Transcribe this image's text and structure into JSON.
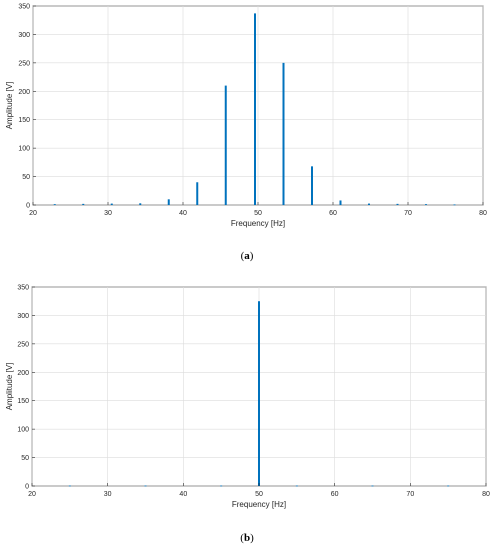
{
  "chart_data": [
    {
      "type": "bar",
      "panel_label": "a",
      "xlabel": "Frequency [Hz]",
      "ylabel": "Amplitude [V]",
      "xlim": [
        20,
        80
      ],
      "ylim": [
        0,
        350
      ],
      "xticks": [
        20,
        30,
        40,
        50,
        60,
        70,
        80
      ],
      "yticks": [
        0,
        50,
        100,
        150,
        200,
        250,
        300,
        350
      ],
      "grid": true,
      "color": "#0072BD",
      "x": [
        22.9,
        26.7,
        30.5,
        34.3,
        38.1,
        41.9,
        45.7,
        49.6,
        53.4,
        57.2,
        61.0,
        64.8,
        68.6,
        72.4,
        76.2
      ],
      "values": [
        1.5,
        2,
        2.5,
        3,
        10,
        40,
        210,
        337,
        250,
        68,
        8,
        2.5,
        2,
        1.5,
        1
      ]
    },
    {
      "type": "bar",
      "panel_label": "b",
      "xlabel": "Frequency [Hz]",
      "ylabel": "Amplitude [V]",
      "xlim": [
        20,
        80
      ],
      "ylim": [
        0,
        350
      ],
      "xticks": [
        20,
        30,
        40,
        50,
        60,
        70,
        80
      ],
      "yticks": [
        0,
        50,
        100,
        150,
        200,
        250,
        300,
        350
      ],
      "grid": true,
      "color": "#0072BD",
      "x": [
        25,
        35,
        45,
        50,
        55,
        65,
        75
      ],
      "values": [
        0.8,
        0.8,
        0.8,
        325,
        0.8,
        0.8,
        0.8
      ]
    }
  ]
}
